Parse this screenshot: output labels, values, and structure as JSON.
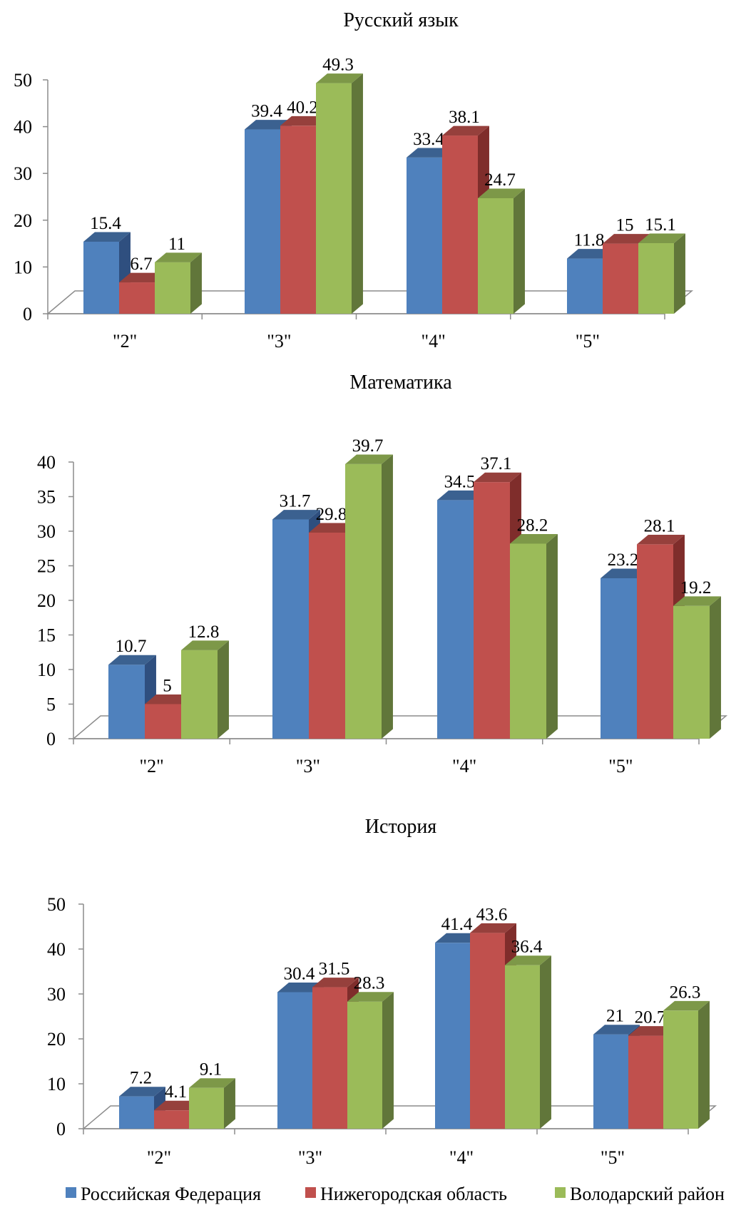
{
  "chart_data": [
    {
      "type": "bar",
      "title": "Русский язык",
      "categories": [
        "\"2\"",
        "\"3\"",
        "\"4\"",
        "\"5\""
      ],
      "ylim": [
        0,
        50
      ],
      "yticks": [
        0,
        10,
        20,
        30,
        40,
        50
      ],
      "series": [
        {
          "name": "Российская Федерация",
          "values": [
            15.4,
            39.4,
            33.4,
            11.8
          ]
        },
        {
          "name": "Нижегородская область",
          "values": [
            6.7,
            40.2,
            38.1,
            15
          ]
        },
        {
          "name": "Володарский район",
          "values": [
            11,
            49.3,
            24.7,
            15.1
          ]
        }
      ],
      "grid": false,
      "view": "3d"
    },
    {
      "type": "bar",
      "title": "Математика",
      "categories": [
        "\"2\"",
        "\"3\"",
        "\"4\"",
        "\"5\""
      ],
      "ylim": [
        0,
        40
      ],
      "yticks": [
        0,
        5,
        10,
        15,
        20,
        25,
        30,
        35,
        40
      ],
      "series": [
        {
          "name": "Российская Федерация",
          "values": [
            10.7,
            31.7,
            34.5,
            23.2
          ]
        },
        {
          "name": "Нижегородская область",
          "values": [
            5,
            29.8,
            37.1,
            28.1
          ]
        },
        {
          "name": "Володарский район",
          "values": [
            12.8,
            39.7,
            28.2,
            19.2
          ]
        }
      ],
      "grid": false,
      "view": "3d"
    },
    {
      "type": "bar",
      "title": "История",
      "categories": [
        "\"2\"",
        "\"3\"",
        "\"4\"",
        "\"5\""
      ],
      "ylim": [
        0,
        50
      ],
      "yticks": [
        0,
        10,
        20,
        30,
        40,
        50
      ],
      "series": [
        {
          "name": "Российская Федерация",
          "values": [
            7.2,
            30.4,
            41.4,
            21
          ]
        },
        {
          "name": "Нижегородская область",
          "values": [
            4.1,
            31.5,
            43.6,
            20.7
          ]
        },
        {
          "name": "Володарский район",
          "values": [
            9.1,
            28.3,
            36.4,
            26.3
          ]
        }
      ],
      "grid": false,
      "view": "3d"
    }
  ],
  "legend": {
    "position": "bottom",
    "items": [
      {
        "name": "Российская Федерация",
        "color": "#4f81bd"
      },
      {
        "name": "Нижегородская область",
        "color": "#c0504d"
      },
      {
        "name": "Володарский район",
        "color": "#9bbb59"
      }
    ]
  },
  "colors": {
    "series": [
      "#4f81bd",
      "#c0504d",
      "#9bbb59"
    ],
    "side": [
      "#2f4f7f",
      "#7f2d2b",
      "#61763a"
    ],
    "top": [
      "#3b6190",
      "#96403c",
      "#7d9848"
    ]
  }
}
